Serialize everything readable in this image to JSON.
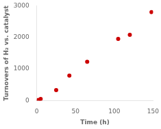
{
  "chart_data": {
    "type": "scatter",
    "x": [
      2,
      5,
      25,
      42,
      65,
      105,
      120,
      148
    ],
    "values": [
      20,
      50,
      330,
      790,
      1230,
      1950,
      2080,
      2800
    ],
    "x_label": "Time (h)",
    "y_label": "Turnovers of H₂ vs. catalyst",
    "xlim": [
      0,
      150
    ],
    "ylim": [
      0,
      3000
    ],
    "xticks": [
      0,
      50,
      100,
      150
    ],
    "yticks": [
      0,
      1000,
      2000,
      3000
    ],
    "color": "#cc0000",
    "grid": false
  }
}
